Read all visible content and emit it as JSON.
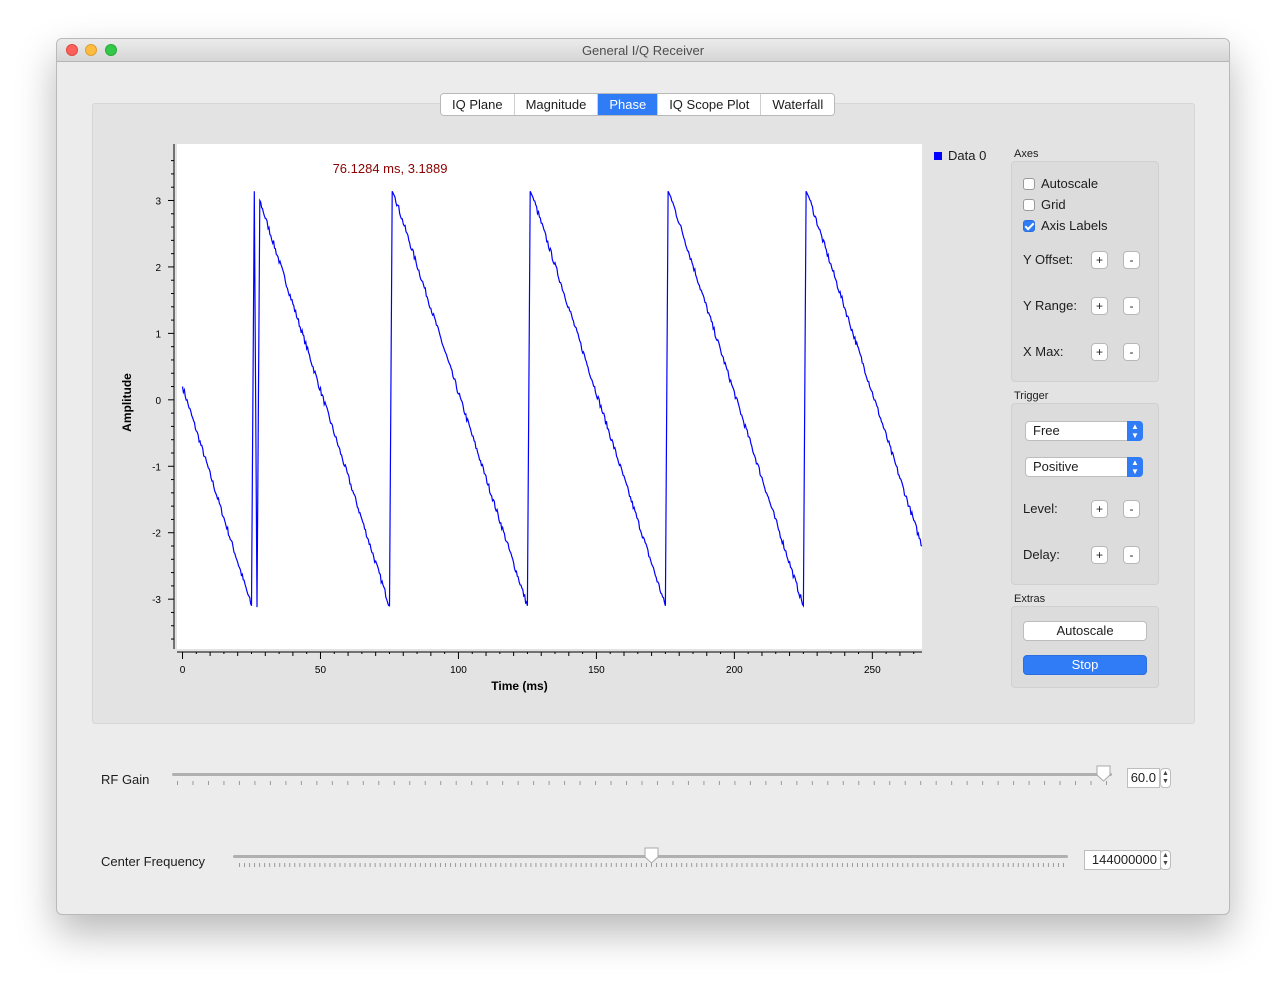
{
  "window": {
    "title": "General I/Q Receiver"
  },
  "tabs": [
    {
      "label": "IQ Plane",
      "active": false
    },
    {
      "label": "Magnitude",
      "active": false
    },
    {
      "label": "Phase",
      "active": true
    },
    {
      "label": "IQ Scope Plot",
      "active": false
    },
    {
      "label": "Waterfall",
      "active": false
    }
  ],
  "chart_data": {
    "type": "line",
    "xlabel": "Time (ms)",
    "ylabel": "Amplitude",
    "xlim": [
      -2,
      268
    ],
    "ylim": [
      -3.75,
      3.85
    ],
    "xticks": [
      0,
      50,
      100,
      150,
      200,
      250
    ],
    "yticks": [
      -3,
      -2,
      -1,
      0,
      1,
      2,
      3
    ],
    "grid": false,
    "legend_position": "top-right-outside",
    "series": [
      {
        "name": "Data 0",
        "color": "#0000ff",
        "x": [
          0,
          25,
          26,
          27,
          28,
          75,
          76,
          77,
          125,
          126,
          127,
          175,
          176,
          177,
          225,
          226,
          227,
          268
        ],
        "y": [
          0.2,
          -3.1,
          3.14,
          -3.12,
          3.0,
          -3.1,
          3.14,
          3.05,
          -3.1,
          3.14,
          3.05,
          -3.1,
          3.14,
          3.05,
          -3.1,
          3.14,
          3.05,
          -2.2
        ]
      }
    ],
    "annotation": {
      "text": "76.1284 ms, 3.1889",
      "x": 76.1284,
      "y": 3.1889,
      "color": "#8b0000"
    }
  },
  "axes_group": {
    "title": "Axes",
    "autoscale": {
      "label": "Autoscale",
      "checked": false
    },
    "grid": {
      "label": "Grid",
      "checked": false
    },
    "axis_labels": {
      "label": "Axis Labels",
      "checked": true
    },
    "y_offset_label": "Y Offset:",
    "y_range_label": "Y Range:",
    "x_max_label": "X Max:",
    "plus": "+",
    "minus": "-"
  },
  "trigger_group": {
    "title": "Trigger",
    "mode": "Free",
    "slope": "Positive",
    "level_label": "Level:",
    "delay_label": "Delay:"
  },
  "extras_group": {
    "title": "Extras",
    "autoscale_button": "Autoscale",
    "stop_button": "Stop"
  },
  "rf_gain": {
    "label": "RF Gain",
    "value": "60.0",
    "fraction": 0.99
  },
  "center_frequency": {
    "label": "Center Frequency",
    "value": "144000000",
    "fraction": 0.5
  }
}
